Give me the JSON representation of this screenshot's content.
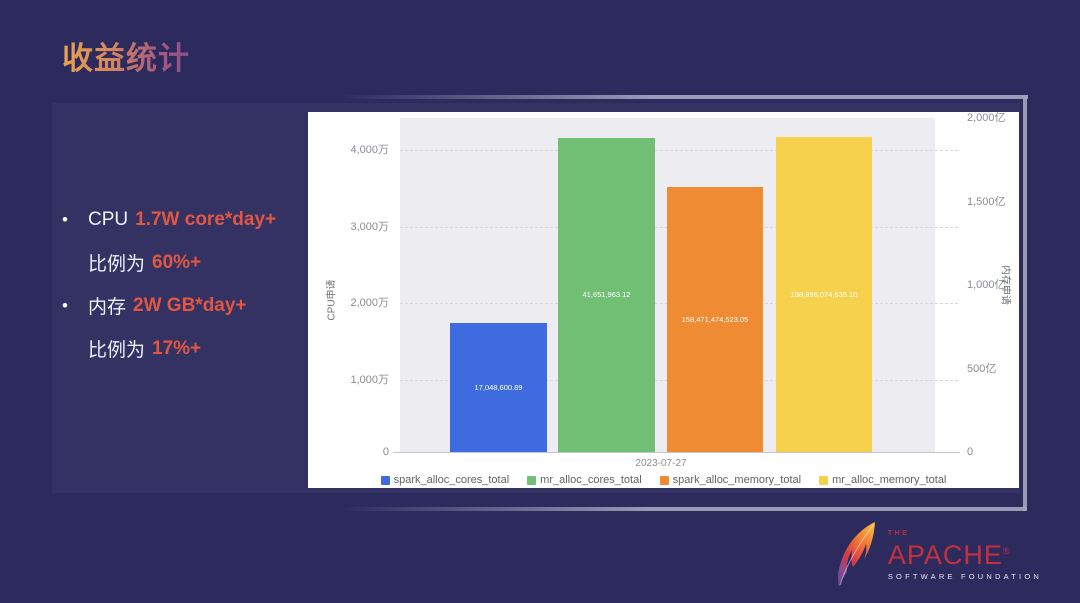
{
  "slide": {
    "title": "收益统计",
    "bullets": [
      {
        "lead": "CPU",
        "value": "1.7W core*day+",
        "sub_lead": "比例为",
        "sub_value": "60%+"
      },
      {
        "lead": "内存",
        "value": "2W GB*day+",
        "sub_lead": "比例为",
        "sub_value": "17%+"
      }
    ],
    "bullet_glyph": "•"
  },
  "chart_data": {
    "type": "bar",
    "categories": [
      "2023-07-27"
    ],
    "series": [
      {
        "name": "spark_alloc_cores_total",
        "axis": "left",
        "value": 17048600.89,
        "label": "17,048,600.89",
        "color": "#3e6be0"
      },
      {
        "name": "mr_alloc_cores_total",
        "axis": "left",
        "value": 41651963.12,
        "label": "41,651,963.12",
        "color": "#71bf74"
      },
      {
        "name": "spark_alloc_memory_total",
        "axis": "right",
        "value": 158471474523.05,
        "label": "158,471,474,523.05",
        "color": "#ef8b33"
      },
      {
        "name": "mr_alloc_memory_total",
        "axis": "right",
        "value": 188896074635.1,
        "label": "188,896,074,635.10",
        "color": "#f6d14d"
      }
    ],
    "left_axis": {
      "name": "CPU申请",
      "max": 44270000,
      "ticks": [
        "4,000万",
        "3,000万",
        "2,000万",
        "1,000万",
        "0"
      ]
    },
    "right_axis": {
      "name": "内存申请",
      "max": 200000000000,
      "ticks": [
        "2,000亿",
        "1,500亿",
        "1,000亿",
        "500亿",
        "0"
      ]
    },
    "grid": "horizontal dashed",
    "legend_position": "bottom",
    "plot_background": "#ededf1"
  },
  "logo": {
    "the": "THE",
    "name": "APACHE",
    "reg": "®",
    "subtitle": "SOFTWARE FOUNDATION"
  }
}
